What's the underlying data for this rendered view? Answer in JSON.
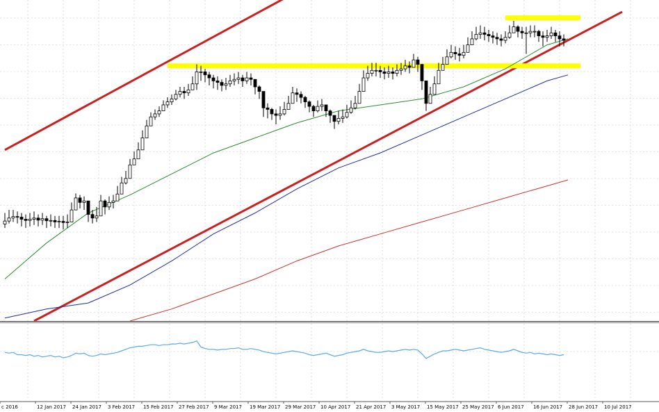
{
  "colors": {
    "background": "#ffffff",
    "grid": "#c8c8c8",
    "candle": "#000000",
    "sma_fast": "#2e8b2e",
    "sma_mid": "#1f2aa6",
    "sma_slow": "#d03030",
    "channel": "#cc1f1f",
    "level": "#ffff00",
    "oscillator": "#5aa9e6",
    "separator": "#777777"
  },
  "chart_data": {
    "type": "line",
    "description_type": "candlestick price chart with moving averages, trend channel and oscillator sub-panel",
    "title": "",
    "xlabel": "",
    "ylabel": "",
    "x_tick_labels": [
      "c 2016",
      "12 Jan 2017",
      "24 Jan 2017",
      "3 Feb 2017",
      "15 Feb 2017",
      "27 Feb 2017",
      "9 Mar 2017",
      "19 Mar 2017",
      "29 Mar 2017",
      "10 Apr 2017",
      "21 Apr 2017",
      "3 May 2017",
      "15 May 2017",
      "25 May 2017",
      "6 Jun 2017",
      "16 Jun 2017",
      "28 Jun 2017",
      "10 Jul 2017"
    ],
    "y_range": [
      0,
      100
    ],
    "grid": true,
    "candles": {
      "count": 135,
      "close": [
        33.3,
        34.3,
        34.8,
        34.6,
        33.9,
        33.5,
        33.9,
        34.3,
        33.6,
        34.1,
        33.4,
        33.5,
        33.0,
        33.2,
        32.8,
        33.0,
        37.0,
        41.0,
        39.5,
        40.0,
        35.5,
        34.3,
        35.0,
        40.0,
        38.0,
        39.5,
        40.0,
        42.3,
        46.0,
        47.5,
        52.0,
        54.0,
        57.0,
        61.0,
        65.0,
        68.0,
        69.0,
        70.0,
        72.0,
        73.0,
        74.0,
        75.5,
        76.5,
        76.0,
        77.0,
        79.0,
        83.0,
        83.0,
        82.0,
        81.0,
        80.0,
        79.5,
        78.5,
        79.0,
        80.0,
        80.5,
        81.0,
        80.0,
        81.0,
        80.5,
        78.0,
        76.5,
        71.0,
        70.5,
        69.0,
        68.5,
        69.0,
        70.5,
        72.5,
        76.0,
        75.5,
        74.5,
        73.0,
        71.5,
        70.0,
        71.5,
        72.0,
        70.0,
        68.5,
        66.5,
        67.5,
        68.0,
        69.5,
        71.0,
        72.5,
        76.5,
        81.0,
        82.5,
        83.5,
        83.5,
        83.0,
        82.5,
        83.0,
        82.5,
        83.5,
        84.0,
        85.0,
        84.5,
        87.0,
        85.5,
        80.0,
        72.5,
        75.5,
        79.0,
        83.5,
        85.5,
        88.0,
        89.5,
        89.0,
        88.5,
        89.5,
        92.0,
        94.0,
        95.5,
        96.0,
        95.5,
        95.0,
        94.5,
        94.0,
        93.5,
        94.5,
        96.0,
        98.0,
        96.5,
        96.0,
        96.0,
        96.5,
        96.5,
        95.0,
        94.5,
        95.0,
        96.0,
        95.0,
        94.0,
        93.5
      ],
      "high": [
        36.0,
        37.0,
        37.0,
        36.5,
        36.0,
        35.5,
        36.0,
        36.5,
        35.5,
        36.0,
        35.0,
        35.5,
        35.0,
        35.0,
        35.0,
        35.5,
        39.5,
        42.5,
        42.0,
        41.5,
        37.5,
        37.0,
        38.0,
        42.0,
        40.5,
        41.5,
        42.0,
        45.0,
        48.0,
        50.0,
        54.0,
        56.5,
        59.5,
        63.5,
        67.0,
        69.5,
        70.5,
        71.5,
        73.5,
        74.5,
        75.5,
        77.0,
        78.0,
        78.0,
        79.0,
        81.5,
        85.5,
        85.0,
        84.0,
        83.0,
        82.0,
        81.5,
        80.5,
        81.0,
        82.0,
        82.5,
        83.0,
        82.0,
        83.0,
        82.5,
        80.0,
        78.5,
        73.0,
        72.5,
        71.0,
        70.5,
        71.5,
        73.0,
        75.0,
        78.0,
        77.5,
        76.5,
        75.0,
        73.5,
        72.0,
        73.5,
        74.0,
        72.0,
        70.5,
        68.5,
        70.0,
        70.5,
        72.0,
        73.5,
        75.0,
        79.0,
        83.5,
        85.0,
        86.0,
        86.0,
        85.0,
        84.5,
        85.0,
        84.5,
        85.5,
        86.0,
        87.0,
        86.5,
        89.0,
        88.0,
        82.5,
        75.0,
        78.0,
        81.5,
        86.0,
        88.0,
        90.5,
        92.0,
        91.5,
        91.0,
        92.0,
        94.5,
        96.5,
        98.0,
        98.5,
        98.0,
        97.0,
        96.5,
        96.0,
        95.5,
        96.5,
        98.5,
        100.0,
        98.5,
        98.0,
        98.0,
        98.5,
        98.5,
        97.0,
        96.5,
        97.0,
        98.0,
        97.0,
        96.5,
        95.5
      ],
      "low": [
        31.0,
        32.5,
        33.0,
        32.5,
        31.5,
        31.0,
        31.5,
        32.0,
        31.5,
        32.0,
        31.0,
        31.5,
        31.0,
        31.0,
        30.5,
        31.0,
        35.0,
        38.0,
        37.5,
        37.0,
        33.0,
        32.5,
        33.0,
        37.5,
        35.5,
        37.0,
        37.5,
        40.5,
        44.0,
        45.5,
        50.0,
        52.0,
        55.0,
        59.0,
        63.0,
        66.0,
        67.0,
        68.0,
        70.0,
        71.0,
        72.0,
        73.5,
        74.5,
        74.0,
        75.0,
        77.0,
        77.0,
        80.0,
        79.5,
        78.5,
        77.5,
        77.0,
        76.5,
        77.0,
        78.0,
        78.5,
        79.0,
        78.0,
        79.0,
        78.5,
        75.5,
        74.0,
        68.0,
        67.5,
        67.0,
        65.5,
        67.0,
        68.5,
        70.5,
        73.5,
        73.0,
        72.5,
        71.0,
        69.5,
        68.0,
        69.5,
        70.0,
        68.0,
        66.0,
        64.0,
        65.5,
        66.0,
        67.5,
        69.0,
        70.5,
        74.0,
        78.5,
        80.0,
        81.5,
        81.5,
        81.0,
        80.5,
        81.0,
        80.5,
        81.5,
        82.0,
        83.0,
        82.5,
        85.0,
        83.0,
        77.0,
        70.0,
        73.0,
        76.5,
        81.0,
        83.5,
        86.0,
        87.5,
        87.0,
        86.5,
        87.5,
        90.0,
        92.0,
        93.5,
        94.0,
        93.5,
        93.0,
        92.5,
        92.0,
        91.5,
        92.5,
        94.0,
        96.0,
        94.5,
        94.0,
        89.0,
        94.5,
        94.5,
        93.0,
        91.5,
        93.0,
        94.0,
        93.0,
        91.5,
        91.5
      ]
    },
    "series": [
      {
        "name": "",
        "color": "#2e8b2e",
        "x": [
          0,
          10,
          20,
          30,
          40,
          50,
          60,
          70,
          80,
          90,
          100,
          110,
          120,
          130,
          135
        ],
        "values": [
          14,
          26,
          36,
          42,
          49,
          56,
          61,
          66,
          70,
          72,
          74,
          78,
          84,
          92,
          94
        ]
      },
      {
        "name": "",
        "color": "#1f2aa6",
        "x": [
          0,
          10,
          20,
          30,
          40,
          50,
          60,
          70,
          80,
          90,
          100,
          110,
          120,
          130,
          135
        ],
        "values": [
          1,
          4,
          6,
          12,
          20,
          29,
          36,
          44,
          51,
          56,
          62,
          68,
          74,
          80,
          82
        ]
      },
      {
        "name": "",
        "color": "#d03030",
        "x": [
          30,
          40,
          50,
          60,
          70,
          80,
          90,
          100,
          110,
          120,
          130,
          135
        ],
        "values": [
          0,
          4,
          9,
          14,
          20,
          25,
          29,
          33,
          37,
          41,
          45,
          47
        ]
      }
    ],
    "channel_lines": [
      {
        "x": [
          0,
          73
        ],
        "values": [
          57,
          112
        ]
      },
      {
        "x": [
          7,
          148
        ],
        "values": [
          0,
          103
        ]
      }
    ],
    "horizontal_levels": [
      {
        "x": [
          39,
          138
        ],
        "value": 85
      },
      {
        "x": [
          120,
          138
        ],
        "value": 101
      }
    ],
    "oscillator": {
      "values": [
        58,
        57,
        58,
        55,
        55,
        54,
        55,
        53,
        54,
        52,
        53,
        54,
        52,
        53,
        51,
        52,
        54,
        57,
        56,
        57,
        54,
        53,
        54,
        56,
        55,
        56,
        57,
        58,
        60,
        62,
        64,
        65,
        66,
        66,
        67,
        68,
        68,
        67,
        68,
        68,
        69,
        69,
        70,
        69,
        70,
        71,
        73,
        65,
        63,
        62,
        62,
        61,
        62,
        62,
        63,
        63,
        64,
        62,
        62,
        63,
        62,
        61,
        59,
        58,
        57,
        56,
        57,
        58,
        59,
        60,
        59,
        58,
        57,
        55,
        54,
        55,
        56,
        57,
        55,
        53,
        54,
        55,
        57,
        58,
        59,
        60,
        62,
        60,
        59,
        58,
        58,
        59,
        60,
        59,
        60,
        61,
        62,
        61,
        62,
        61,
        56,
        50,
        53,
        56,
        58,
        60,
        60,
        61,
        62,
        61,
        60,
        61,
        62,
        63,
        64,
        62,
        61,
        60,
        59,
        58,
        59,
        60,
        62,
        60,
        58,
        57,
        58,
        56,
        57,
        56,
        55,
        56,
        55,
        54,
        55
      ]
    }
  }
}
